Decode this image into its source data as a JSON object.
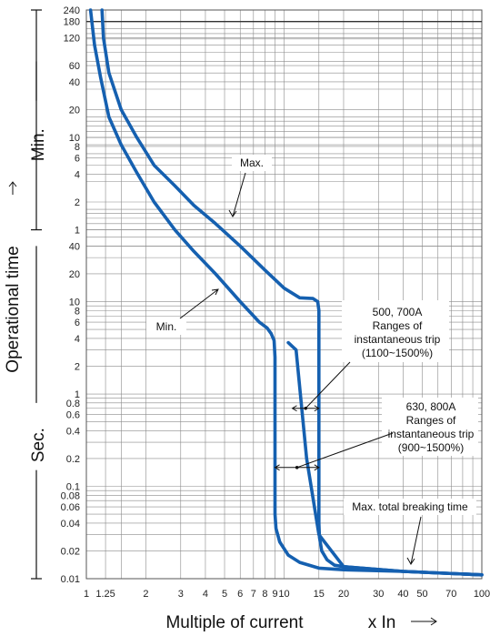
{
  "chart_data": {
    "type": "line",
    "title": "",
    "xlabel": "Multiple of current",
    "xunit": "x In",
    "ylabel": "Operational time",
    "yscale": "log",
    "xscale": "log",
    "xlim": [
      1,
      100
    ],
    "ylim_seconds": [
      0.01,
      14400
    ],
    "grid": true,
    "x_ticks": [
      {
        "v": 1,
        "l": "1"
      },
      {
        "v": 1.25,
        "l": "1.25"
      },
      {
        "v": 2,
        "l": "2"
      },
      {
        "v": 3,
        "l": "3"
      },
      {
        "v": 4,
        "l": "4"
      },
      {
        "v": 5,
        "l": "5"
      },
      {
        "v": 6,
        "l": "6"
      },
      {
        "v": 7,
        "l": "7"
      },
      {
        "v": 8,
        "l": "8"
      },
      {
        "v": 9,
        "l": "9"
      },
      {
        "v": 10,
        "l": "10"
      },
      {
        "v": 15,
        "l": "15"
      },
      {
        "v": 20,
        "l": "20"
      },
      {
        "v": 30,
        "l": "30"
      },
      {
        "v": 40,
        "l": "40"
      },
      {
        "v": 50,
        "l": "50"
      },
      {
        "v": 70,
        "l": "70"
      },
      {
        "v": 100,
        "l": "100"
      }
    ],
    "y_min_ticks": [
      {
        "v": 240,
        "l": "240"
      },
      {
        "v": 180,
        "l": "180"
      },
      {
        "v": 120,
        "l": "120"
      },
      {
        "v": 60,
        "l": "60"
      },
      {
        "v": 40,
        "l": "40"
      },
      {
        "v": 20,
        "l": "20"
      },
      {
        "v": 10,
        "l": "10"
      },
      {
        "v": 8,
        "l": "8"
      },
      {
        "v": 6,
        "l": "6"
      },
      {
        "v": 4,
        "l": "4"
      },
      {
        "v": 2,
        "l": "2"
      },
      {
        "v": 1,
        "l": "1"
      }
    ],
    "y_sec_ticks": [
      {
        "v": 40,
        "l": "40"
      },
      {
        "v": 20,
        "l": "20"
      },
      {
        "v": 10,
        "l": "10"
      },
      {
        "v": 8,
        "l": "8"
      },
      {
        "v": 6,
        "l": "6"
      },
      {
        "v": 4,
        "l": "4"
      },
      {
        "v": 2,
        "l": "2"
      },
      {
        "v": 1,
        "l": "1"
      },
      {
        "v": 0.8,
        "l": "0.8"
      },
      {
        "v": 0.6,
        "l": "0.6"
      },
      {
        "v": 0.4,
        "l": "0.4"
      },
      {
        "v": 0.2,
        "l": "0.2"
      },
      {
        "v": 0.1,
        "l": "0.1"
      },
      {
        "v": 0.08,
        "l": "0.08"
      },
      {
        "v": 0.06,
        "l": "0.06"
      },
      {
        "v": 0.04,
        "l": "0.04"
      },
      {
        "v": 0.02,
        "l": "0.02"
      },
      {
        "v": 0.01,
        "l": "0.01"
      }
    ],
    "y_unit_labels": {
      "minutes": "Min.",
      "seconds": "Sec."
    },
    "series": [
      {
        "name": "Min.",
        "x": [
          1.05,
          1.1,
          1.18,
          1.3,
          1.5,
          1.8,
          2.2,
          2.8,
          3.5,
          4.5,
          6,
          7.5,
          8.2,
          8.6,
          8.9,
          9.0,
          9.0,
          9.1,
          9.5,
          10.5,
          12,
          15,
          20,
          40,
          100
        ],
        "y_seconds": [
          14400,
          6000,
          2700,
          1000,
          500,
          250,
          120,
          60,
          35,
          20,
          10,
          6,
          5.2,
          4.5,
          3.8,
          2.5,
          0.05,
          0.035,
          0.025,
          0.018,
          0.015,
          0.013,
          0.0125,
          0.012,
          0.011
        ]
      },
      {
        "name": "Max.",
        "x": [
          1.2,
          1.22,
          1.3,
          1.5,
          1.8,
          2.2,
          2.8,
          3.5,
          4.5,
          6,
          8,
          10,
          12,
          14,
          14.8,
          15,
          15,
          15.1,
          15.5,
          16.5,
          18,
          20,
          40,
          100
        ],
        "y_seconds": [
          14400,
          7200,
          3000,
          1200,
          600,
          300,
          180,
          110,
          70,
          40,
          22,
          14,
          11,
          10.8,
          10,
          8,
          0.04,
          0.028,
          0.02,
          0.016,
          0.014,
          0.0135,
          0.012,
          0.011
        ]
      },
      {
        "name": "500, 700A",
        "x": [
          10.5,
          11.5,
          13,
          15,
          20,
          40,
          100
        ],
        "y_seconds": [
          3.6,
          3.0,
          0.2,
          0.03,
          0.0135,
          0.012,
          0.011
        ]
      }
    ],
    "annotations": [
      {
        "id": "max",
        "text": [
          "Max."
        ]
      },
      {
        "id": "min",
        "text": [
          "Min."
        ]
      },
      {
        "id": "range1",
        "text": [
          "500, 700A",
          "Ranges of",
          "instantaneous trip",
          "(1100~1500%)"
        ]
      },
      {
        "id": "range2",
        "text": [
          "630, 800A",
          "Ranges of",
          "instantaneous trip",
          "(900~1500%)"
        ]
      },
      {
        "id": "breaking",
        "text": [
          "Max. total breaking time"
        ]
      }
    ]
  }
}
